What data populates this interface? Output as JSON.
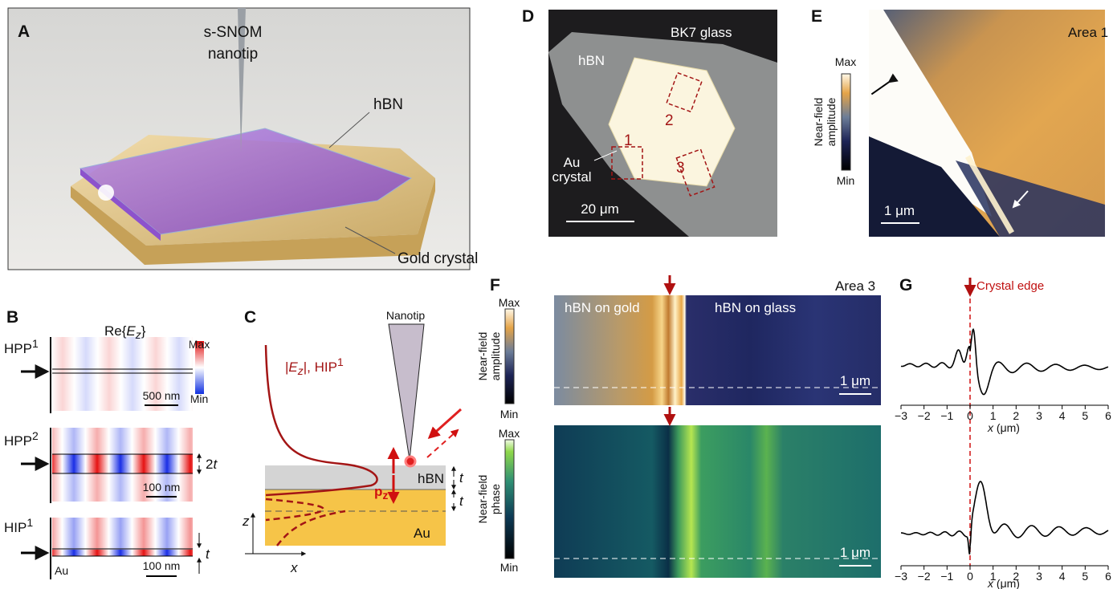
{
  "panel_a": {
    "label": "A",
    "tip_label": [
      "s-SNOM",
      "nanotip"
    ],
    "hbn": "hBN",
    "gold": "Gold crystal"
  },
  "panel_b": {
    "label": "B",
    "title": [
      "Re{",
      "E",
      "z",
      "}"
    ],
    "colorbar": {
      "max": "Max",
      "min": "Min"
    },
    "modes": [
      {
        "name": "HPP",
        "sup": "1",
        "scale": "500 nm"
      },
      {
        "name": "HPP",
        "sup": "2",
        "scale": "100 nm",
        "thickness": [
          "2",
          "t"
        ]
      },
      {
        "name": "HIP",
        "sup": "1",
        "scale": "100 nm",
        "thickness": "t",
        "substrate": "Au"
      }
    ]
  },
  "panel_c": {
    "label": "C",
    "field": [
      "|",
      "E",
      "z",
      "|, HIP",
      "1"
    ],
    "tip": "Nanotip",
    "dipole": [
      "p",
      "z"
    ],
    "layers": [
      "hBN",
      "Au"
    ],
    "thickness": [
      "t",
      "t"
    ],
    "axes": [
      "z",
      "x"
    ]
  },
  "panel_d": {
    "label": "D",
    "substrate": "BK7 glass",
    "flake": "hBN",
    "areas": [
      "1",
      "2",
      "3"
    ],
    "crystal": [
      "Au",
      "crystal"
    ],
    "scale": "20 μm"
  },
  "panel_e": {
    "label": "E",
    "title": "Area 1",
    "colorbar": {
      "max": "Max",
      "min": "Min",
      "label": [
        "Near-field",
        "amplitude"
      ]
    },
    "scale": "1 μm"
  },
  "panel_f": {
    "label": "F",
    "title": "Area 3",
    "regions": [
      "hBN on gold",
      "hBN on glass"
    ],
    "amplitude": {
      "max": "Max",
      "min": "Min",
      "label": [
        "Near-field",
        "amplitude"
      ],
      "scale": "1 μm"
    },
    "phase": {
      "max": "Max",
      "min": "Min",
      "label": [
        "Near-field",
        "phase"
      ],
      "scale": "1 μm"
    }
  },
  "panel_g": {
    "label": "G",
    "edge": "Crystal edge",
    "xticks": [
      "−3",
      "−2",
      "−1",
      "0",
      "1",
      "2",
      "3",
      "4",
      "5",
      "6"
    ],
    "xlabel": [
      "x",
      " (μm)"
    ]
  }
}
